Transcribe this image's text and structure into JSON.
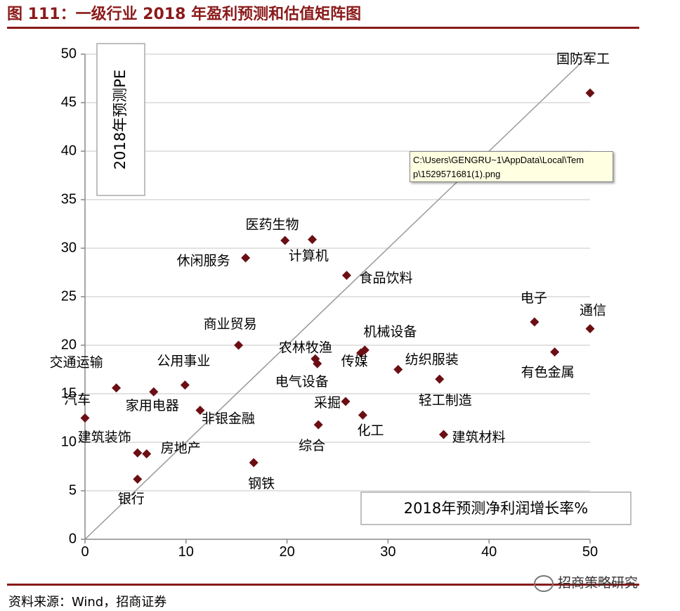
{
  "title": "图 111：一级行业 2018 年盈利预测和估值矩阵图",
  "source": "资料来源：Wind，招商证券",
  "watermark": "招商策略研究",
  "tooltip": {
    "line1": "C:\\Users\\GENGRU~1\\AppData\\Local\\Tem",
    "line2": "p\\1529571681(1).png"
  },
  "colors": {
    "accent": "#8b1a1a",
    "marker": "#6b0f14",
    "grid": "#d0d0d0",
    "diagonal": "#999999"
  },
  "chart_data": {
    "type": "scatter",
    "title": "",
    "xlabel": "2018年预测净利润增长率%",
    "ylabel": "2018年预测PE",
    "xlim": [
      0,
      50
    ],
    "ylim": [
      0,
      50
    ],
    "xticks": [
      0,
      10,
      20,
      30,
      40,
      50
    ],
    "yticks": [
      0,
      5,
      10,
      15,
      20,
      25,
      30,
      35,
      40,
      45,
      50
    ],
    "grid": "horizontal",
    "reference_line": "y = x",
    "points": [
      {
        "name": "国防军工",
        "x": 50.0,
        "y": 46.0
      },
      {
        "name": "医药生物",
        "x": 22.5,
        "y": 30.9
      },
      {
        "name": "计算机",
        "x": 19.8,
        "y": 30.8
      },
      {
        "name": "休闲服务",
        "x": 15.9,
        "y": 29.0
      },
      {
        "name": "食品饮料",
        "x": 25.9,
        "y": 27.2
      },
      {
        "name": "电子",
        "x": 44.5,
        "y": 22.4
      },
      {
        "name": "通信",
        "x": 50.0,
        "y": 21.7
      },
      {
        "name": "有色金属",
        "x": 46.5,
        "y": 19.3
      },
      {
        "name": "商业贸易",
        "x": 15.2,
        "y": 20.0
      },
      {
        "name": "农林牧渔",
        "x": 22.8,
        "y": 18.6
      },
      {
        "name": "电气设备",
        "x": 23.0,
        "y": 18.1
      },
      {
        "name": "机械设备",
        "x": 27.7,
        "y": 19.5
      },
      {
        "name": "传媒",
        "x": 27.3,
        "y": 19.2
      },
      {
        "name": "纺织服装",
        "x": 31.0,
        "y": 17.5
      },
      {
        "name": "轻工制造",
        "x": 35.1,
        "y": 16.5
      },
      {
        "name": "采掘",
        "x": 25.8,
        "y": 14.2
      },
      {
        "name": "化工",
        "x": 27.5,
        "y": 12.8
      },
      {
        "name": "建筑材料",
        "x": 35.5,
        "y": 10.8
      },
      {
        "name": "综合",
        "x": 23.1,
        "y": 11.8
      },
      {
        "name": "钢铁",
        "x": 16.7,
        "y": 7.9
      },
      {
        "name": "交通运输",
        "x": 3.1,
        "y": 15.6
      },
      {
        "name": "公用事业",
        "x": 9.9,
        "y": 15.9
      },
      {
        "name": "家用电器",
        "x": 6.8,
        "y": 15.2
      },
      {
        "name": "非银金融",
        "x": 11.4,
        "y": 13.3
      },
      {
        "name": "汽车",
        "x": 0.0,
        "y": 12.5
      },
      {
        "name": "建筑装饰",
        "x": 5.2,
        "y": 8.9
      },
      {
        "name": "房地产",
        "x": 6.1,
        "y": 8.8
      },
      {
        "name": "银行",
        "x": 5.2,
        "y": 6.2
      }
    ]
  }
}
